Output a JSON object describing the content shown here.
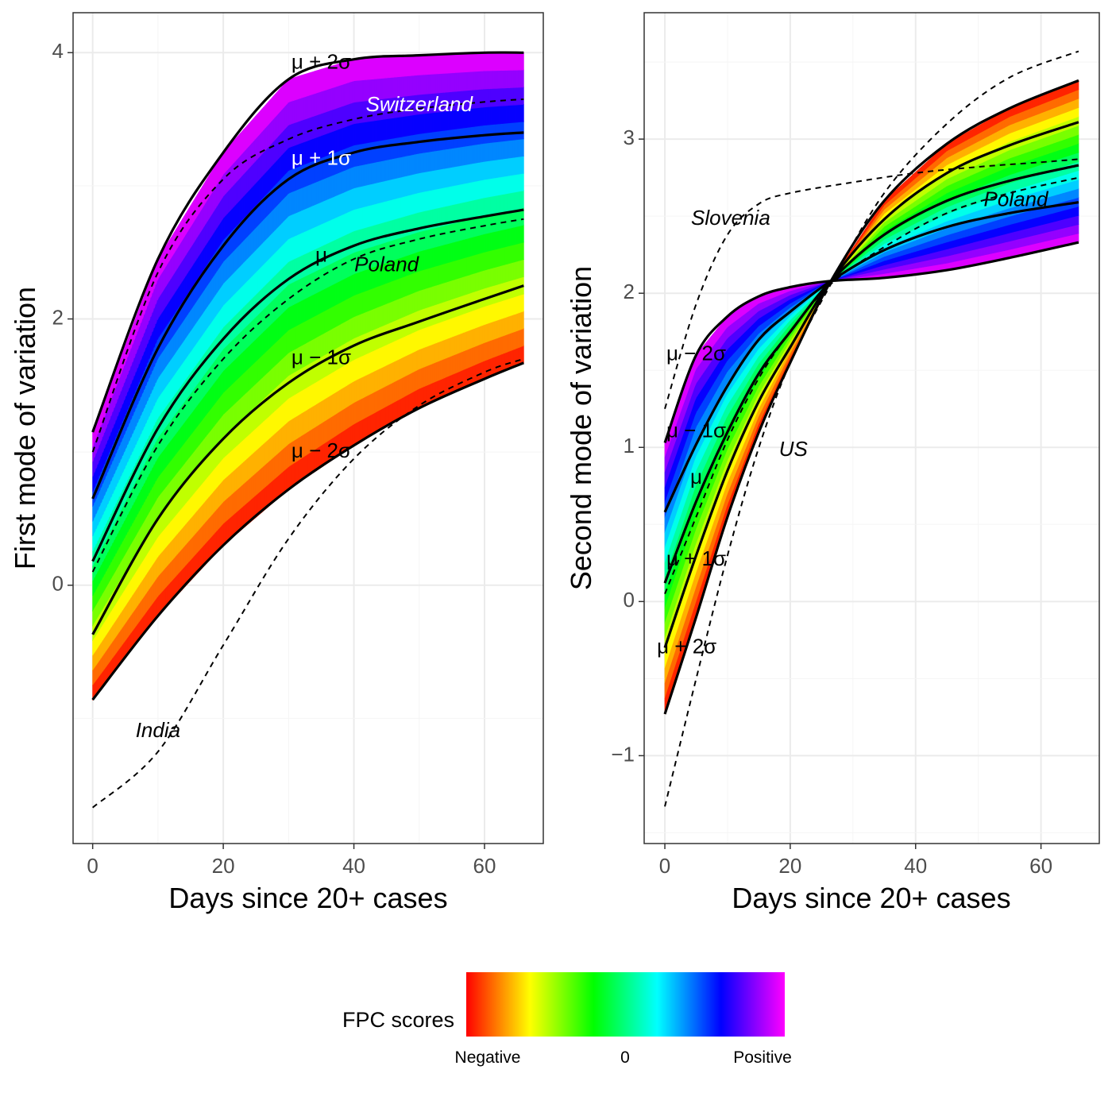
{
  "chart_data": [
    {
      "type": "line",
      "panel": "left",
      "xlabel": "Days since 20+ cases",
      "ylabel": "First mode of variation",
      "xlim": [
        -3,
        69
      ],
      "ylim": [
        -1.94,
        4.3
      ],
      "xticks": [
        0,
        20,
        40,
        60
      ],
      "yticks": [
        0,
        2,
        4
      ],
      "xtick_labels": [
        "0",
        "20",
        "40",
        "60"
      ],
      "ytick_labels": [
        "0",
        "2",
        "4"
      ],
      "grid": true,
      "mode_curves": [
        {
          "name": "μ+2σ",
          "x": [
            0,
            10,
            20,
            30,
            40,
            50,
            60,
            66
          ],
          "y": [
            1.15,
            2.45,
            3.25,
            3.8,
            3.95,
            3.98,
            4.0,
            4.0
          ]
        },
        {
          "name": "μ+1σ",
          "x": [
            0,
            10,
            20,
            30,
            40,
            50,
            60,
            66
          ],
          "y": [
            0.65,
            1.78,
            2.55,
            3.05,
            3.25,
            3.33,
            3.38,
            3.4
          ]
        },
        {
          "name": "μ",
          "x": [
            0,
            10,
            20,
            30,
            40,
            50,
            60,
            66
          ],
          "y": [
            0.18,
            1.18,
            1.85,
            2.3,
            2.55,
            2.68,
            2.77,
            2.82
          ]
        },
        {
          "name": "μ−1σ",
          "x": [
            0,
            10,
            20,
            30,
            40,
            50,
            60,
            66
          ],
          "y": [
            -0.37,
            0.5,
            1.1,
            1.52,
            1.8,
            1.98,
            2.15,
            2.25
          ]
        },
        {
          "name": "μ−2σ",
          "x": [
            0,
            10,
            20,
            30,
            40,
            50,
            60,
            66
          ],
          "y": [
            -0.86,
            -0.23,
            0.3,
            0.72,
            1.05,
            1.33,
            1.55,
            1.67
          ]
        }
      ],
      "country_curves": [
        {
          "name": "Switzerland",
          "x": [
            0,
            10,
            20,
            30,
            40,
            50,
            60,
            66
          ],
          "y": [
            1.0,
            2.35,
            3.05,
            3.35,
            3.5,
            3.58,
            3.63,
            3.65
          ]
        },
        {
          "name": "Poland",
          "x": [
            0,
            10,
            20,
            30,
            40,
            50,
            60,
            66
          ],
          "y": [
            0.1,
            1.05,
            1.7,
            2.15,
            2.45,
            2.6,
            2.7,
            2.75
          ]
        },
        {
          "name": "India",
          "x": [
            0,
            10,
            20,
            30,
            40,
            50,
            60,
            66
          ],
          "y": [
            -1.67,
            -1.25,
            -0.45,
            0.35,
            0.95,
            1.35,
            1.6,
            1.7
          ]
        }
      ],
      "annotations": [
        {
          "text": "μ + 2σ",
          "x": 35,
          "y": 3.92
        },
        {
          "text": "μ + 1σ",
          "x": 35,
          "y": 3.2
        },
        {
          "text": "μ",
          "x": 35,
          "y": 2.47
        },
        {
          "text": "μ − 1σ",
          "x": 35,
          "y": 1.7
        },
        {
          "text": "μ − 2σ",
          "x": 35,
          "y": 1.0
        },
        {
          "text": "Switzerland",
          "x": 50,
          "y": 3.6
        },
        {
          "text": "Poland",
          "x": 45,
          "y": 2.4
        },
        {
          "text": "India",
          "x": 10,
          "y": -1.1
        }
      ]
    },
    {
      "type": "line",
      "panel": "right",
      "xlabel": "Days since 20+ cases",
      "ylabel": "Second mode of variation",
      "xlim": [
        -3.3,
        69.3
      ],
      "ylim": [
        -1.57,
        3.82
      ],
      "xticks": [
        0,
        20,
        40,
        60
      ],
      "yticks": [
        -1,
        0,
        1,
        2,
        3
      ],
      "xtick_labels": [
        "0",
        "20",
        "40",
        "60"
      ],
      "ytick_labels": [
        "−1",
        "0",
        "1",
        "2",
        "3"
      ],
      "grid": true,
      "mode_curves": [
        {
          "name": "μ−2σ",
          "x": [
            0,
            5,
            10,
            15,
            20,
            26.5,
            35,
            45,
            55,
            66
          ],
          "y": [
            1.03,
            1.6,
            1.85,
            1.98,
            2.04,
            2.08,
            2.1,
            2.15,
            2.23,
            2.33
          ]
        },
        {
          "name": "μ−1σ",
          "x": [
            0,
            5,
            10,
            15,
            20,
            26.5,
            35,
            45,
            55,
            66
          ],
          "y": [
            0.58,
            1.02,
            1.4,
            1.7,
            1.88,
            2.08,
            2.28,
            2.43,
            2.52,
            2.59
          ]
        },
        {
          "name": "μ",
          "x": [
            0,
            5,
            10,
            15,
            20,
            26.5,
            35,
            45,
            55,
            66
          ],
          "y": [
            0.12,
            0.65,
            1.1,
            1.48,
            1.75,
            2.08,
            2.38,
            2.6,
            2.73,
            2.83
          ]
        },
        {
          "name": "μ+1σ",
          "x": [
            0,
            5,
            10,
            15,
            20,
            26.5,
            35,
            45,
            55,
            66
          ],
          "y": [
            -0.3,
            0.3,
            0.85,
            1.3,
            1.65,
            2.08,
            2.48,
            2.78,
            2.96,
            3.11
          ]
        },
        {
          "name": "μ+2σ",
          "x": [
            0,
            5,
            10,
            15,
            20,
            26.5,
            35,
            45,
            55,
            66
          ],
          "y": [
            -0.73,
            -0.1,
            0.55,
            1.1,
            1.55,
            2.08,
            2.6,
            2.97,
            3.2,
            3.38
          ]
        }
      ],
      "country_curves": [
        {
          "name": "Slovenia",
          "x": [
            0,
            5,
            10,
            15,
            20,
            30,
            40,
            50,
            60,
            66
          ],
          "y": [
            1.25,
            1.93,
            2.38,
            2.58,
            2.65,
            2.72,
            2.78,
            2.82,
            2.85,
            2.87
          ]
        },
        {
          "name": "Poland",
          "x": [
            0,
            5,
            10,
            15,
            20,
            26.5,
            35,
            45,
            55,
            66
          ],
          "y": [
            0.05,
            0.55,
            1.05,
            1.45,
            1.75,
            2.06,
            2.3,
            2.52,
            2.65,
            2.75
          ]
        },
        {
          "name": "US",
          "x": [
            0,
            5,
            10,
            15,
            20,
            26.5,
            35,
            45,
            55,
            66
          ],
          "y": [
            -1.33,
            -0.5,
            0.3,
            1.0,
            1.55,
            2.06,
            2.65,
            3.1,
            3.4,
            3.57
          ]
        }
      ],
      "annotations": [
        {
          "text": "μ − 2σ",
          "x": 5,
          "y": 1.6
        },
        {
          "text": "μ − 1σ",
          "x": 5,
          "y": 1.1
        },
        {
          "text": "μ",
          "x": 5,
          "y": 0.8
        },
        {
          "text": "μ + 1σ",
          "x": 5,
          "y": 0.27
        },
        {
          "text": "μ + 2σ",
          "x": 3.5,
          "y": -0.3
        },
        {
          "text": "Slovenia",
          "x": 10.5,
          "y": 2.48
        },
        {
          "text": "US",
          "x": 20.5,
          "y": 0.98
        },
        {
          "text": "Poland",
          "x": 56,
          "y": 2.6
        }
      ]
    }
  ],
  "legend": {
    "title": "FPC scores",
    "labels": [
      "Negative",
      "0",
      "Positive"
    ],
    "colors": [
      "#ff0000",
      "#ff8000",
      "#ffff00",
      "#80ff00",
      "#00ff00",
      "#00ff80",
      "#00ffff",
      "#0080ff",
      "#0000ff",
      "#8000ff",
      "#ff00ff"
    ]
  },
  "colors": {
    "curve": "#000000",
    "panel_border": "#333333",
    "grid_major": "#ebebeb",
    "grid_minor": "#f5f5f5",
    "white_label": "#ffffff",
    "black_label": "#000000"
  }
}
